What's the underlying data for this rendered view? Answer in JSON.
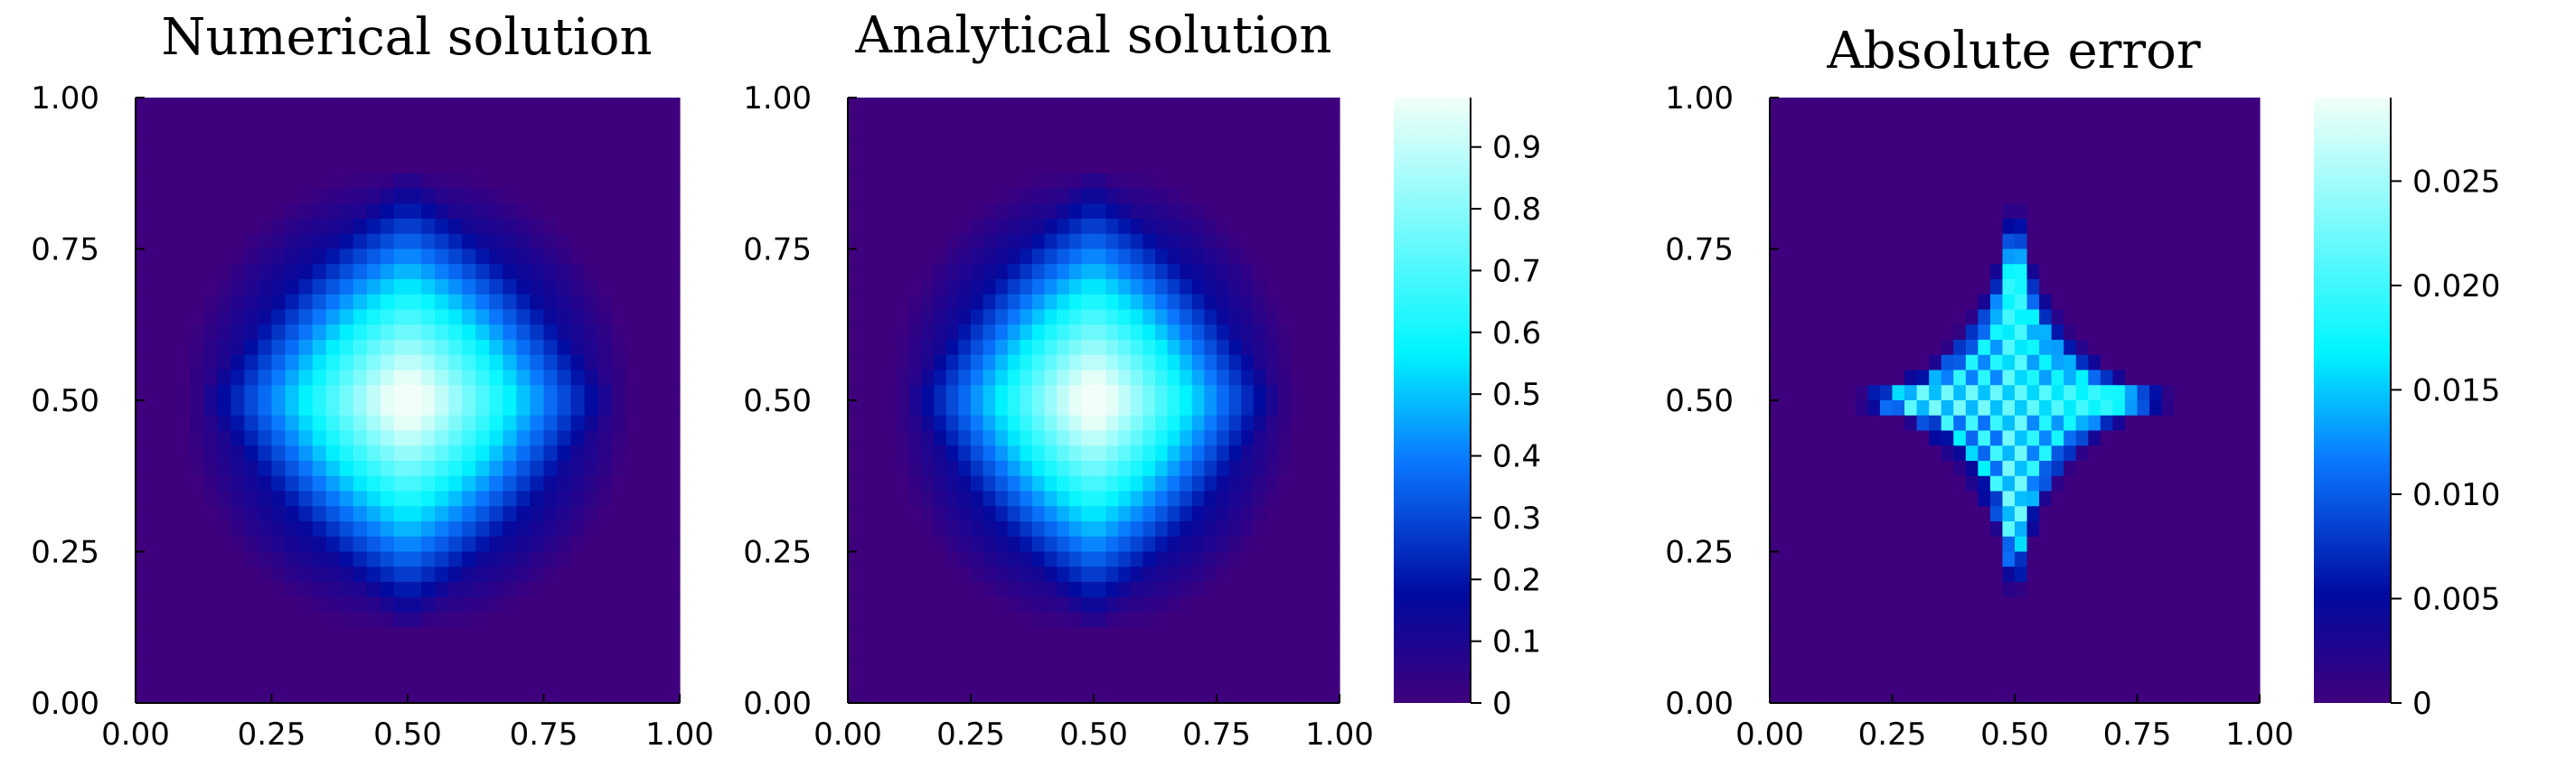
{
  "chart_data": [
    {
      "type": "heatmap",
      "title": "Numerical solution",
      "xlabel": "",
      "ylabel": "",
      "xlim": [
        0,
        1
      ],
      "ylim": [
        0,
        1
      ],
      "x_ticks": [
        "0.00",
        "0.25",
        "0.50",
        "0.75",
        "1.00"
      ],
      "y_ticks": [
        "0.00",
        "0.25",
        "0.50",
        "0.75",
        "1.00"
      ],
      "value_range": [
        0,
        1
      ],
      "peak": {
        "x": 0.5,
        "y": 0.5,
        "value": 1.0
      },
      "colorbar": false
    },
    {
      "type": "heatmap",
      "title": "Analytical solution",
      "xlabel": "",
      "ylabel": "",
      "xlim": [
        0,
        1
      ],
      "ylim": [
        0,
        1
      ],
      "x_ticks": [
        "0.00",
        "0.25",
        "0.50",
        "0.75",
        "1.00"
      ],
      "y_ticks": [
        "0.00",
        "0.25",
        "0.50",
        "0.75",
        "1.00"
      ],
      "value_range": [
        0,
        1
      ],
      "peak": {
        "x": 0.5,
        "y": 0.5,
        "value": 1.0
      },
      "colorbar": true,
      "colorbar_range": [
        0,
        0.98
      ],
      "colorbar_ticks": [
        "0",
        "0.1",
        "0.2",
        "0.3",
        "0.4",
        "0.5",
        "0.6",
        "0.7",
        "0.8",
        "0.9"
      ]
    },
    {
      "type": "heatmap",
      "title": "Absolute error",
      "xlabel": "",
      "ylabel": "",
      "xlim": [
        0,
        1
      ],
      "ylim": [
        0,
        1
      ],
      "x_ticks": [
        "0.00",
        "0.25",
        "0.50",
        "0.75",
        "1.00"
      ],
      "y_ticks": [
        "0.00",
        "0.25",
        "0.50",
        "0.75",
        "1.00"
      ],
      "value_range": [
        0,
        0.029
      ],
      "pattern": "four-pointed star centered at (0.5, 0.5), strongest along x = 0.5 and y = 0.5",
      "colorbar": true,
      "colorbar_range": [
        0,
        0.029
      ],
      "colorbar_ticks": [
        "0",
        "0.005",
        "0.010",
        "0.015",
        "0.020",
        "0.025"
      ]
    }
  ],
  "colormap": [
    "#3f007d",
    "#000aa0",
    "#0a78ff",
    "#00f5ff",
    "#f2fff8"
  ]
}
